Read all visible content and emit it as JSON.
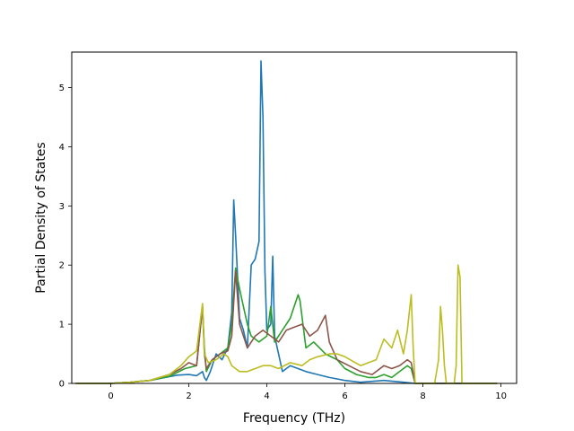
{
  "chart_data": {
    "type": "line",
    "title": "",
    "xlabel": "Frequency (THz)",
    "ylabel": "Partial Density of States",
    "xlim": [
      -1.0,
      10.4
    ],
    "ylim": [
      0,
      5.6
    ],
    "xticks": [
      0,
      2,
      4,
      6,
      8,
      10
    ],
    "yticks": [
      0,
      1,
      2,
      3,
      4,
      5
    ],
    "grid": false,
    "legend": "none",
    "series": [
      {
        "color": "#1f77b4",
        "x": [
          -0.9,
          0.0,
          0.5,
          1.0,
          1.4,
          1.7,
          2.0,
          2.2,
          2.35,
          2.4,
          2.45,
          2.55,
          2.7,
          2.85,
          3.0,
          3.1,
          3.15,
          3.2,
          3.3,
          3.4,
          3.5,
          3.6,
          3.7,
          3.8,
          3.85,
          3.9,
          3.95,
          4.0,
          4.1,
          4.15,
          4.2,
          4.3,
          4.4,
          4.6,
          4.8,
          5.0,
          5.3,
          5.6,
          6.0,
          6.4,
          7.0,
          7.5,
          7.8,
          8.2,
          9.0,
          9.9
        ],
        "y": [
          0,
          0.0,
          0.02,
          0.05,
          0.1,
          0.14,
          0.15,
          0.13,
          0.2,
          0.1,
          0.05,
          0.2,
          0.5,
          0.4,
          0.6,
          1.2,
          3.1,
          2.5,
          1.1,
          0.9,
          0.6,
          2.0,
          2.1,
          2.4,
          5.45,
          4.5,
          1.9,
          0.9,
          1.0,
          2.15,
          0.8,
          0.5,
          0.2,
          0.3,
          0.25,
          0.2,
          0.15,
          0.1,
          0.05,
          0.02,
          0.05,
          0.02,
          0.0,
          0.0,
          0.0,
          0.0
        ]
      },
      {
        "color": "#2ca02c",
        "x": [
          -0.9,
          0.0,
          0.5,
          1.0,
          1.5,
          1.9,
          2.2,
          2.35,
          2.4,
          2.45,
          2.6,
          2.8,
          3.0,
          3.1,
          3.2,
          3.3,
          3.4,
          3.5,
          3.6,
          3.8,
          4.0,
          4.1,
          4.2,
          4.4,
          4.6,
          4.8,
          4.85,
          5.0,
          5.2,
          5.5,
          5.8,
          6.0,
          6.3,
          6.6,
          6.8,
          7.0,
          7.2,
          7.4,
          7.6,
          7.7,
          7.8,
          8.2,
          9.0,
          9.9
        ],
        "y": [
          0,
          0.0,
          0.02,
          0.05,
          0.12,
          0.25,
          0.3,
          1.3,
          0.6,
          0.2,
          0.4,
          0.5,
          0.6,
          1.0,
          1.95,
          1.6,
          1.3,
          1.0,
          0.8,
          0.7,
          0.8,
          1.3,
          0.7,
          0.9,
          1.1,
          1.5,
          1.4,
          0.6,
          0.7,
          0.5,
          0.4,
          0.25,
          0.15,
          0.1,
          0.1,
          0.15,
          0.1,
          0.2,
          0.3,
          0.25,
          0.0,
          0.0,
          0.0,
          0.0
        ]
      },
      {
        "color": "#8c564b",
        "x": [
          -0.9,
          0.0,
          0.5,
          1.0,
          1.5,
          1.8,
          2.0,
          2.2,
          2.35,
          2.4,
          2.45,
          2.6,
          2.8,
          3.0,
          3.1,
          3.2,
          3.3,
          3.5,
          3.7,
          3.9,
          4.1,
          4.3,
          4.5,
          4.7,
          4.9,
          5.1,
          5.3,
          5.5,
          5.6,
          5.8,
          6.1,
          6.4,
          6.7,
          7.0,
          7.2,
          7.4,
          7.6,
          7.7,
          7.8,
          8.2,
          9.0,
          9.9
        ],
        "y": [
          0,
          0.0,
          0.02,
          0.05,
          0.15,
          0.25,
          0.35,
          0.3,
          1.3,
          0.5,
          0.25,
          0.4,
          0.5,
          0.55,
          0.8,
          1.9,
          1.0,
          0.6,
          0.8,
          0.9,
          0.8,
          0.7,
          0.9,
          0.95,
          1.0,
          0.8,
          0.9,
          1.15,
          0.7,
          0.4,
          0.3,
          0.2,
          0.15,
          0.3,
          0.25,
          0.3,
          0.4,
          0.35,
          0.0,
          0.0,
          0.0,
          0.0
        ]
      },
      {
        "color": "#bcbd22",
        "x": [
          -0.9,
          0.0,
          0.5,
          1.0,
          1.5,
          1.8,
          2.0,
          2.1,
          2.2,
          2.35,
          2.4,
          2.5,
          2.7,
          2.9,
          3.0,
          3.1,
          3.2,
          3.3,
          3.5,
          3.7,
          3.9,
          4.1,
          4.3,
          4.6,
          4.9,
          5.1,
          5.3,
          5.6,
          5.8,
          6.0,
          6.4,
          6.8,
          7.0,
          7.2,
          7.35,
          7.5,
          7.6,
          7.7,
          7.75,
          7.8,
          8.2,
          8.3,
          8.4,
          8.45,
          8.5,
          8.55,
          8.6,
          8.8,
          8.85,
          8.9,
          8.95,
          9.0,
          9.5,
          9.9
        ],
        "y": [
          0,
          0.0,
          0.02,
          0.05,
          0.15,
          0.3,
          0.45,
          0.5,
          0.55,
          1.35,
          0.5,
          0.35,
          0.4,
          0.5,
          0.45,
          0.3,
          0.25,
          0.2,
          0.2,
          0.25,
          0.3,
          0.3,
          0.25,
          0.35,
          0.3,
          0.4,
          0.45,
          0.5,
          0.5,
          0.45,
          0.3,
          0.4,
          0.75,
          0.6,
          0.9,
          0.5,
          0.9,
          1.5,
          0.6,
          0.0,
          0.0,
          0.0,
          0.4,
          1.3,
          0.9,
          0.3,
          0.0,
          0.0,
          0.3,
          2.0,
          1.8,
          0.0,
          0.0,
          0.0
        ]
      }
    ]
  }
}
